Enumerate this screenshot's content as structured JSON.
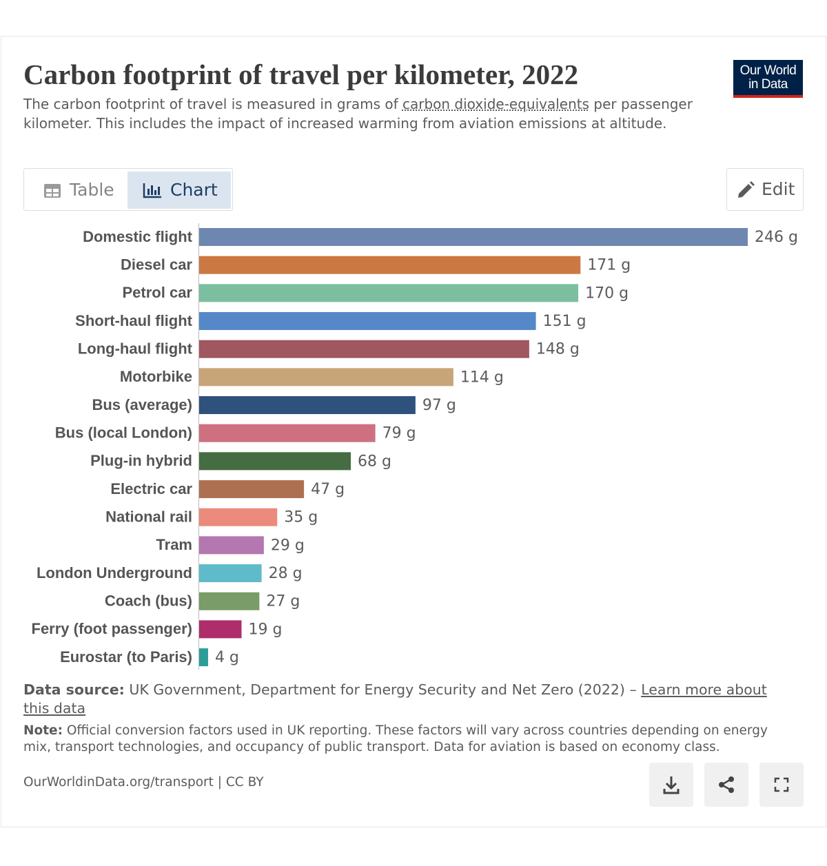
{
  "chart_data": {
    "type": "bar",
    "title": "Carbon footprint of travel per kilometer, 2022",
    "subtitle": [
      "The carbon footprint of travel is measured in grams of ",
      "carbon dioxide-equivalents",
      " per passenger kilometer. This includes the impact of increased warming from aviation emissions at altitude."
    ],
    "categories": [
      "Domestic flight",
      "Diesel car",
      "Petrol car",
      "Short-haul flight",
      "Long-haul flight",
      "Motorbike",
      "Bus (average)",
      "Bus (local London)",
      "Plug-in hybrid",
      "Electric car",
      "National rail",
      "Tram",
      "London Underground",
      "Coach (bus)",
      "Ferry (foot passenger)",
      "Eurostar (to Paris)"
    ],
    "values": [
      246,
      171,
      170,
      151,
      148,
      114,
      97,
      79,
      68,
      47,
      35,
      29,
      28,
      27,
      19,
      4
    ],
    "value_labels": [
      "246 g",
      "171 g",
      "170 g",
      "151 g",
      "148 g",
      "114 g",
      "97 g",
      "79 g",
      "68 g",
      "47 g",
      "35 g",
      "29 g",
      "28 g",
      "27 g",
      "19 g",
      "4 g"
    ],
    "colors": [
      "#6d87b0",
      "#cc7843",
      "#7bbfa0",
      "#5588c8",
      "#a0575f",
      "#c8a479",
      "#2e527c",
      "#cf7080",
      "#456d41",
      "#ad7152",
      "#ec8b7c",
      "#b477b0",
      "#5fbbca",
      "#7a9c68",
      "#ad2e6b",
      "#2e9d9a"
    ]
  },
  "logo": [
    "Our World",
    "in Data"
  ],
  "tabs": [
    "Table",
    "Chart"
  ],
  "edit": "Edit",
  "footer": {
    "source_label": "Data source:",
    "source": " UK Government, Department for Energy Security and Net Zero (2022) – ",
    "source_link": "Learn more about this data",
    "note_label": "Note:",
    "note": " Official conversion factors used in UK reporting. These factors will vary across countries depending on energy mix, transport technologies, and occupancy of public transport. Data for aviation is based on economy class.",
    "url": "OurWorldinData.org/transport | CC BY"
  }
}
